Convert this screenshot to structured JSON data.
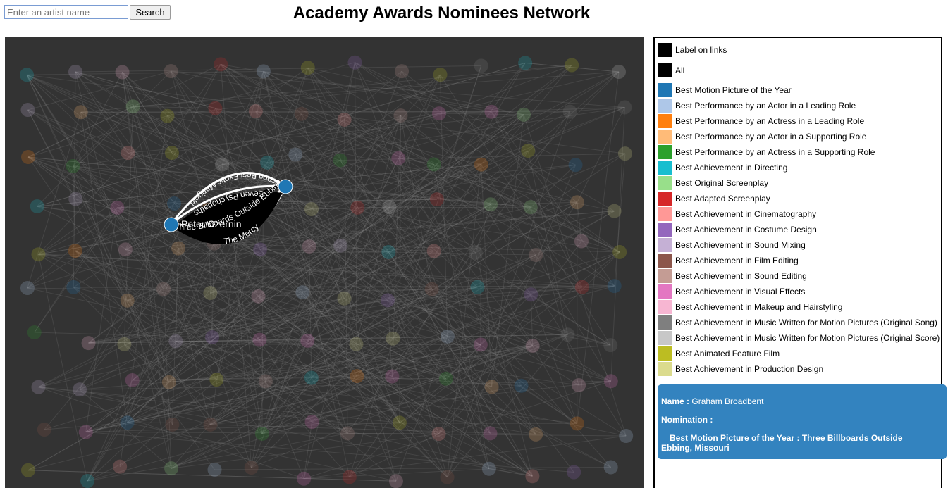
{
  "search": {
    "placeholder": "Enter an artist name",
    "button_label": "Search"
  },
  "page_title": "Academy Awards Nominees Network",
  "legend": {
    "label_on_links": {
      "label": "Label on links",
      "color": "#000000"
    },
    "all": {
      "label": "All",
      "color": "#000000"
    },
    "categories": [
      {
        "label": "Best Motion Picture of the Year",
        "color": "#1f77b4"
      },
      {
        "label": "Best Performance by an Actor in a Leading Role",
        "color": "#aec7e8"
      },
      {
        "label": "Best Performance by an Actress in a Leading Role",
        "color": "#ff7f0e"
      },
      {
        "label": "Best Performance by an Actor in a Supporting Role",
        "color": "#ffbb78"
      },
      {
        "label": "Best Performance by an Actress in a Supporting Role",
        "color": "#2ca02c"
      },
      {
        "label": "Best Achievement in Directing",
        "color": "#17becf"
      },
      {
        "label": "Best Original Screenplay",
        "color": "#98df8a"
      },
      {
        "label": "Best Adapted Screenplay",
        "color": "#d62728"
      },
      {
        "label": "Best Achievement in Cinematography",
        "color": "#ff9896"
      },
      {
        "label": "Best Achievement in Costume Design",
        "color": "#9467bd"
      },
      {
        "label": "Best Achievement in Sound Mixing",
        "color": "#c5b0d5"
      },
      {
        "label": "Best Achievement in Film Editing",
        "color": "#8c564b"
      },
      {
        "label": "Best Achievement in Sound Editing",
        "color": "#c49c94"
      },
      {
        "label": "Best Achievement in Visual Effects",
        "color": "#e377c2"
      },
      {
        "label": "Best Achievement in Makeup and Hairstyling",
        "color": "#f7b6d2"
      },
      {
        "label": "Best Achievement in Music Written for Motion Pictures (Original Song)",
        "color": "#7f7f7f"
      },
      {
        "label": "Best Achievement in Music Written for Motion Pictures (Original Score)",
        "color": "#c7c7c7"
      },
      {
        "label": "Best Animated Feature Film",
        "color": "#bcbd22"
      },
      {
        "label": "Best Achievement in Production Design",
        "color": "#dbdb8d"
      }
    ]
  },
  "info": {
    "name_label": "Name :",
    "name_value": "Graham Broadbent",
    "nomination_label": "Nomination :",
    "nomination_category": "Best Motion Picture of the Year :",
    "nomination_film": "Three Billboards Outside Ebbing, Missouri",
    "background_color": "#3383bf"
  },
  "graph": {
    "background_color": "#333333",
    "highlight_node_color": "#1f77b4",
    "highlight_node_label": "Peter Czernin",
    "highlight_link_labels": [
      "Second Best Exotic Marigold",
      "Seven Psychopaths",
      "Three Billboards Outside Ebbing, Mi",
      "The Mercy"
    ]
  }
}
